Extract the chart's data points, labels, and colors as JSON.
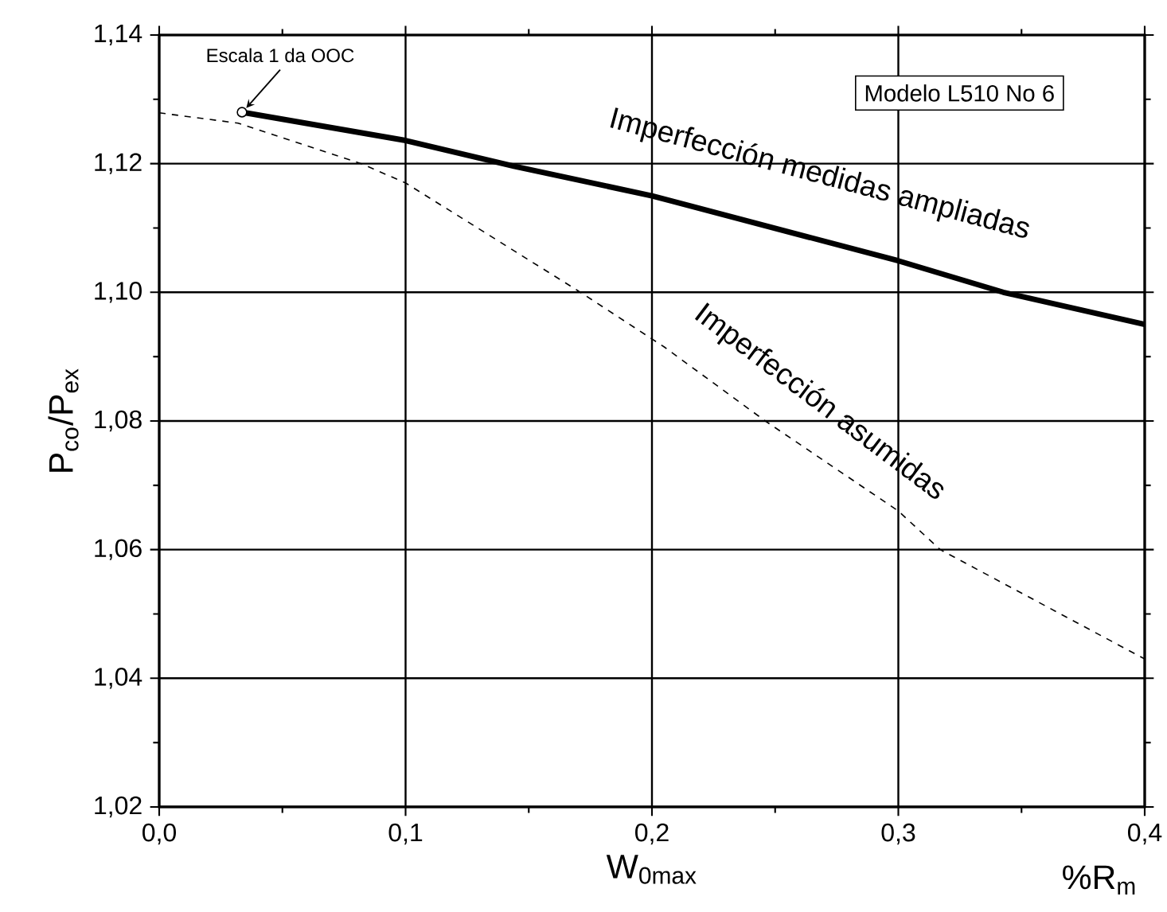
{
  "chart_data": {
    "type": "line",
    "xlabel": "W$_{0max}$",
    "ylabel": "P$_{co}$/P$_{ex}$",
    "xlim": [
      0,
      0.4
    ],
    "ylim": [
      1.02,
      1.14
    ],
    "xticks": [
      {
        "value": 0,
        "label": "0,0"
      },
      {
        "value": 0.1,
        "label": "0,1"
      },
      {
        "value": 0.2,
        "label": "0,2"
      },
      {
        "value": 0.3,
        "label": "0,3"
      },
      {
        "value": 0.4,
        "label": "0,4"
      }
    ],
    "yticks": [
      {
        "value": 1.02,
        "label": "1,02"
      },
      {
        "value": 1.04,
        "label": "1,04"
      },
      {
        "value": 1.06,
        "label": "1,06"
      },
      {
        "value": 1.08,
        "label": "1,08"
      },
      {
        "value": 1.1,
        "label": "1,10"
      },
      {
        "value": 1.12,
        "label": "1,12"
      },
      {
        "value": 1.14,
        "label": "1,14"
      }
    ],
    "grid": true,
    "series": [
      {
        "name": "Imperfección medidas ampliadas",
        "color": "#000000",
        "line_style": "solid",
        "x": [
          0.0336,
          0.1,
          0.144,
          0.2,
          0.3,
          0.3426,
          0.4
        ],
        "values": [
          1.128,
          1.1236,
          1.1196,
          1.115,
          1.1049,
          1.1,
          1.095
        ]
      },
      {
        "name": "Imperfección asumidas",
        "color": "#000000",
        "line_style": "dashed",
        "x": [
          0,
          0.032,
          0.082,
          0.1,
          0.171,
          0.205,
          0.246,
          0.3,
          0.317,
          0.4
        ],
        "values": [
          1.1279,
          1.1263,
          1.12,
          1.117,
          1.1,
          1.0915,
          1.08,
          1.066,
          1.06,
          1.043
        ]
      }
    ],
    "annotations": [
      {
        "text": "Escala 1 da OOC",
        "x": 0.0336,
        "y": 1.128
      },
      "Modelo L510 No 6",
      "%R$_{m}$"
    ]
  }
}
